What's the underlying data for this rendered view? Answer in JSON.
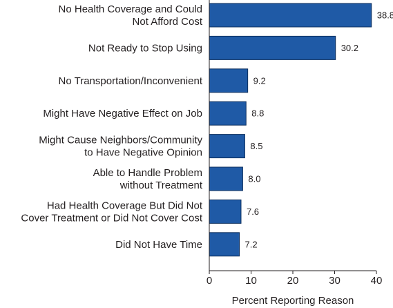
{
  "chart_data": {
    "type": "bar",
    "orientation": "horizontal",
    "categories": [
      [
        "No Health Coverage and Could",
        "Not Afford Cost"
      ],
      [
        "Not Ready to Stop Using"
      ],
      [
        "No Transportation/Inconvenient"
      ],
      [
        "Might Have Negative Effect on Job"
      ],
      [
        "Might Cause Neighbors/Community",
        "to Have Negative Opinion"
      ],
      [
        "Able to Handle Problem",
        "without Treatment"
      ],
      [
        "Had Health Coverage But Did Not",
        "Cover Treatment or Did Not Cover Cost"
      ],
      [
        "Did Not Have Time"
      ]
    ],
    "values": [
      38.8,
      30.2,
      9.2,
      8.8,
      8.5,
      8.0,
      7.6,
      7.2
    ],
    "value_labels": [
      "38.8",
      "30.2",
      "9.2",
      "8.8",
      "8.5",
      "8.0",
      "7.6",
      "7.2"
    ],
    "xlabel": "Percent Reporting Reason",
    "ylabel": "",
    "xlim": [
      0,
      40
    ],
    "xticks": [
      0,
      10,
      20,
      30,
      40
    ],
    "bar_color": "#1f5aa6",
    "bar_edge_color": "#0d2f5e",
    "grid": false
  }
}
